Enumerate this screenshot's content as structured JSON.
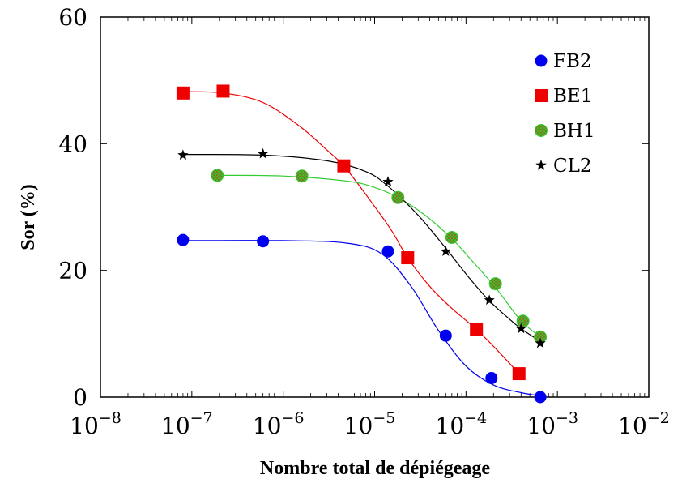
{
  "chart_data": {
    "type": "scatter",
    "xlabel": "Nombre total de dépiégeage",
    "ylabel": "Sor (%)",
    "xscale": "log",
    "xlim": [
      1e-08,
      0.01
    ],
    "ylim": [
      0,
      60
    ],
    "x_tick_labels": [
      {
        "base": "10",
        "exp": "−8"
      },
      {
        "base": "10",
        "exp": "−7"
      },
      {
        "base": "10",
        "exp": "−6"
      },
      {
        "base": "10",
        "exp": "−5"
      },
      {
        "base": "10",
        "exp": "−4"
      },
      {
        "base": "10",
        "exp": "−3"
      },
      {
        "base": "10",
        "exp": "−2"
      }
    ],
    "y_tick_labels": [
      "0",
      "20",
      "40",
      "60"
    ],
    "y_ticks": [
      0,
      20,
      40,
      60
    ],
    "legend_position": "top-right",
    "series": [
      {
        "name": "FB2",
        "marker": "circle",
        "color": "#0000ee",
        "x": [
          8e-08,
          6e-07,
          1.4e-05,
          6e-05,
          0.00019,
          0.00065
        ],
        "y": [
          24.8,
          24.6,
          23.0,
          9.7,
          3.0,
          0.0
        ],
        "fit": [
          [
            8e-08,
            24.7
          ],
          [
            1e-06,
            24.7
          ],
          [
            5e-06,
            24.3
          ],
          [
            1.2e-05,
            22.6
          ],
          [
            2.5e-05,
            17.5
          ],
          [
            5e-05,
            10.5
          ],
          [
            0.0001,
            4.9
          ],
          [
            0.0002,
            1.9
          ],
          [
            0.0004,
            0.7
          ],
          [
            0.00065,
            0.2
          ]
        ]
      },
      {
        "name": "BE1",
        "marker": "square",
        "color": "#ee0000",
        "x": [
          8e-08,
          2.2e-07,
          4.6e-06,
          2.3e-05,
          0.00013,
          0.00038
        ],
        "y": [
          48.0,
          48.3,
          36.5,
          22.0,
          10.7,
          3.7
        ],
        "fit": [
          [
            8e-08,
            48.2
          ],
          [
            2.2e-07,
            48.0
          ],
          [
            6e-07,
            46.5
          ],
          [
            1.5e-06,
            42.8
          ],
          [
            3e-06,
            39.0
          ],
          [
            4.6e-06,
            36.5
          ],
          [
            8e-06,
            32.0
          ],
          [
            1.5e-05,
            26.5
          ],
          [
            2.3e-05,
            22.0
          ],
          [
            4e-05,
            17.5
          ],
          [
            7e-05,
            14.0
          ],
          [
            0.00013,
            10.7
          ],
          [
            0.00022,
            7.4
          ],
          [
            0.00038,
            3.7
          ]
        ]
      },
      {
        "name": "BH1",
        "marker": "circle-hatched",
        "color": "#33cc33",
        "x": [
          1.9e-07,
          1.6e-06,
          1.8e-05,
          7e-05,
          0.00021,
          0.00042,
          0.00065
        ],
        "y": [
          35.0,
          34.9,
          31.5,
          25.2,
          17.9,
          12.0,
          9.5
        ],
        "fit": [
          [
            1.9e-07,
            35.0
          ],
          [
            1e-06,
            34.9
          ],
          [
            5e-06,
            34.1
          ],
          [
            1e-05,
            33.1
          ],
          [
            1.8e-05,
            31.5
          ],
          [
            3.5e-05,
            28.8
          ],
          [
            7e-05,
            25.0
          ],
          [
            0.00012,
            21.3
          ],
          [
            0.00021,
            17.3
          ],
          [
            0.00032,
            13.8
          ],
          [
            0.00042,
            11.7
          ],
          [
            0.00065,
            9.5
          ]
        ]
      },
      {
        "name": "CL2",
        "marker": "star",
        "color": "#000000",
        "x": [
          8e-08,
          6e-07,
          1.4e-05,
          6e-05,
          0.00018,
          0.0004,
          0.00065
        ],
        "y": [
          38.2,
          38.4,
          34.0,
          23.0,
          15.3,
          10.8,
          8.5
        ],
        "fit": [
          [
            8e-08,
            38.3
          ],
          [
            6e-07,
            38.2
          ],
          [
            3e-06,
            37.3
          ],
          [
            8e-06,
            35.6
          ],
          [
            1.4e-05,
            33.3
          ],
          [
            3e-05,
            28.7
          ],
          [
            6e-05,
            23.5
          ],
          [
            0.00011,
            18.7
          ],
          [
            0.00018,
            15.2
          ],
          [
            0.0003,
            12.3
          ],
          [
            0.0004,
            10.8
          ],
          [
            0.00065,
            8.8
          ]
        ]
      }
    ]
  }
}
